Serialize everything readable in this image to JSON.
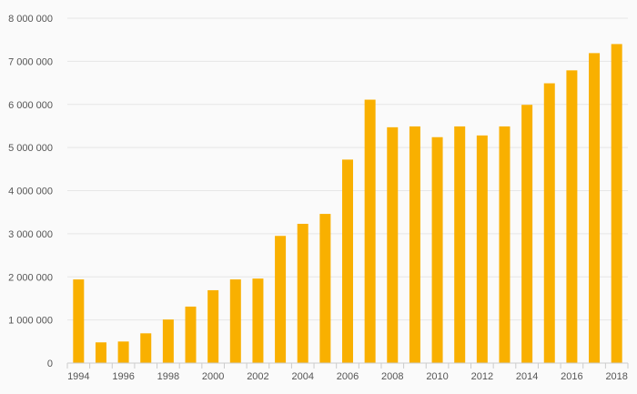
{
  "chart_data": {
    "type": "bar",
    "title": "",
    "xlabel": "",
    "ylabel": "",
    "categories": [
      "1994",
      "1995",
      "1996",
      "1997",
      "1998",
      "1999",
      "2000",
      "2001",
      "2002",
      "2003",
      "2004",
      "2005",
      "2006",
      "2007",
      "2008",
      "2009",
      "2010",
      "2011",
      "2012",
      "2013",
      "2014",
      "2015",
      "2016",
      "2017",
      "2018"
    ],
    "x_tick_labels": [
      "1994",
      "1996",
      "1998",
      "2000",
      "2002",
      "2004",
      "2006",
      "2008",
      "2010",
      "2012",
      "2014",
      "2016",
      "2018"
    ],
    "values": [
      1940000,
      480000,
      500000,
      690000,
      1010000,
      1310000,
      1690000,
      1940000,
      1960000,
      2950000,
      3230000,
      3460000,
      4720000,
      6110000,
      5470000,
      5490000,
      5240000,
      5490000,
      5280000,
      5490000,
      5990000,
      6490000,
      6790000,
      7190000,
      7400000
    ],
    "ylim": [
      0,
      8000000
    ],
    "y_ticks": [
      0,
      1000000,
      2000000,
      3000000,
      4000000,
      5000000,
      6000000,
      7000000,
      8000000
    ],
    "y_tick_labels": [
      "0",
      "1 000 000",
      "2 000 000",
      "3 000 000",
      "4 000 000",
      "5 000 000",
      "6 000 000",
      "7 000 000",
      "8 000 000"
    ],
    "grid": true,
    "legend": "none",
    "colors": {
      "bar": "#f9b000",
      "grid": "#e6e6e6",
      "axis": "#cccccc",
      "label": "#555555"
    }
  }
}
